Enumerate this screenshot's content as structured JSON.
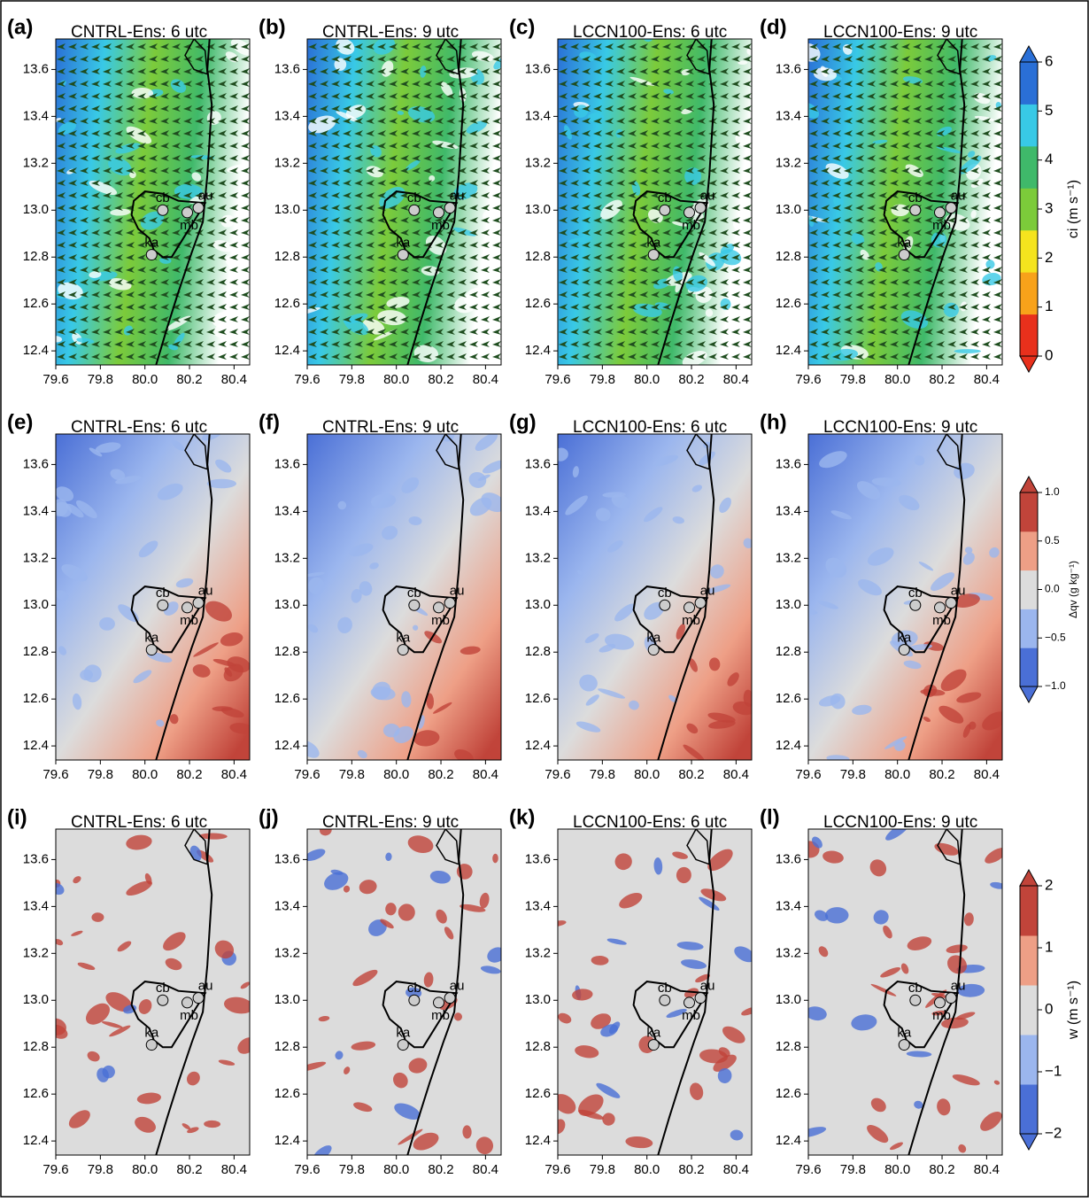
{
  "axes": {
    "xlim": [
      79.6,
      80.47
    ],
    "ylim": [
      12.34,
      13.73
    ],
    "xticks": [
      79.6,
      79.8,
      {
        "value": 80,
        "label": "80.0"
      },
      80.2,
      80.4
    ],
    "yticks": [
      12.4,
      12.6,
      12.8,
      {
        "value": 13,
        "label": "13.0"
      },
      13.2,
      13.4,
      13.6
    ]
  },
  "sites": [
    {
      "name": "cb",
      "x": 80.08,
      "y": 13.0
    },
    {
      "name": "au",
      "x": 80.24,
      "y": 13.01
    },
    {
      "name": "mb",
      "x": 80.19,
      "y": 12.99
    },
    {
      "name": "ka",
      "x": 80.03,
      "y": 12.81
    }
  ],
  "colorbars": [
    {
      "label": "ci (m s⁻¹)",
      "lim": [
        0,
        6
      ],
      "ticks": [
        0,
        1,
        2,
        3,
        4,
        5,
        6
      ],
      "colors": [
        "#e8301c",
        "#f8a21a",
        "#f5e41e",
        "#7ccb3a",
        "#3fb96a",
        "#38c9e6",
        "#2a6fd6"
      ]
    },
    {
      "label": "Δqv (g kg⁻¹)",
      "lim": [
        -1,
        1
      ],
      "ticks": [
        {
          "value": -1,
          "label": "−1.0"
        },
        {
          "value": -0.5,
          "label": "−0.5"
        },
        {
          "value": 0,
          "label": "0.0"
        },
        0.5,
        {
          "value": 1,
          "label": "1.0"
        }
      ],
      "colors": [
        "#4a6fd6",
        "#9bb6ee",
        "#dcdcdc",
        "#ee9f86",
        "#c1443a"
      ]
    },
    {
      "label": "w (m s⁻¹)",
      "lim": [
        -2,
        2
      ],
      "ticks": [
        {
          "value": -2,
          "label": "−2"
        },
        {
          "value": -1,
          "label": "−1"
        },
        0,
        1,
        2
      ],
      "colors": [
        "#4a6fd6",
        "#9bb6ee",
        "#dcdcdc",
        "#ee9f86",
        "#c1443a"
      ]
    }
  ],
  "chart_data": [
    {
      "type": "map",
      "label": "(a)",
      "title": "CNTRL-Ens: 6 utc"
    },
    {
      "type": "map",
      "label": "(b)",
      "title": "CNTRL-Ens: 9 utc"
    },
    {
      "type": "map",
      "label": "(c)",
      "title": "LCCN100-Ens: 6 utc"
    },
    {
      "type": "map",
      "label": "(d)",
      "title": "LCCN100-Ens: 9 utc"
    },
    {
      "type": "map",
      "label": "(e)",
      "title": "CNTRL-Ens: 6 utc"
    },
    {
      "type": "map",
      "label": "(f)",
      "title": "CNTRL-Ens: 9 utc"
    },
    {
      "type": "map",
      "label": "(g)",
      "title": "LCCN100-Ens: 6 utc"
    },
    {
      "type": "map",
      "label": "(h)",
      "title": "LCCN100-Ens: 9 utc"
    },
    {
      "type": "map",
      "label": "(i)",
      "title": "CNTRL-Ens: 6 utc"
    },
    {
      "type": "map",
      "label": "(j)",
      "title": "CNTRL-Ens: 9 utc"
    },
    {
      "type": "map",
      "label": "(k)",
      "title": "LCCN100-Ens: 6 utc"
    },
    {
      "type": "map",
      "label": "(l)",
      "title": "LCCN100-Ens: 9 utc"
    }
  ]
}
